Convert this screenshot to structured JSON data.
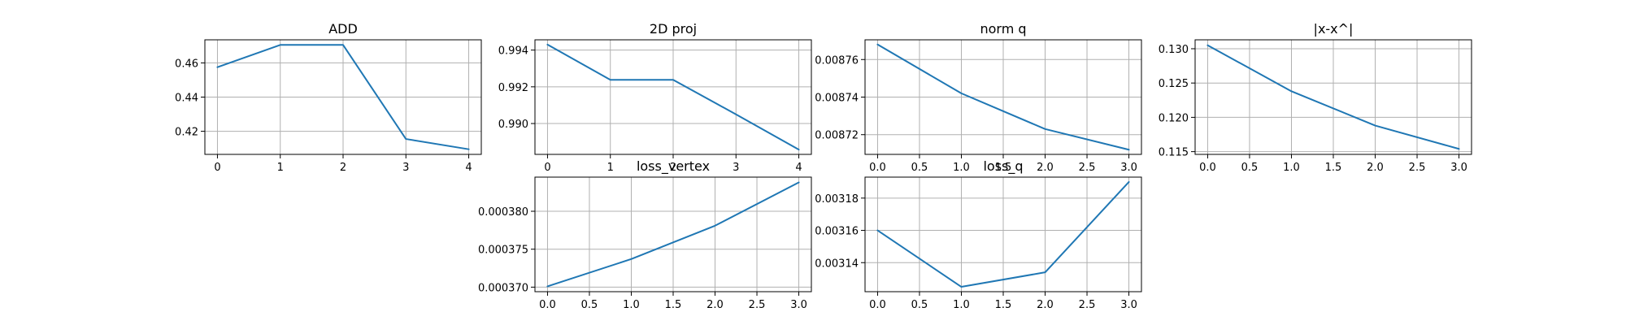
{
  "figure": {
    "background": "#ffffff"
  },
  "chart_data": [
    {
      "type": "line",
      "title": "ADD",
      "x": [
        0,
        1,
        2,
        3,
        4
      ],
      "series": [
        {
          "values": [
            0.4575,
            0.4705,
            0.4705,
            0.4155,
            0.4095
          ],
          "color": "#1f77b4"
        }
      ],
      "xlim": [
        -0.2,
        4.2
      ],
      "ylim": [
        0.4065,
        0.4735
      ],
      "xticks": [
        0,
        1,
        2,
        3,
        4
      ],
      "yticks": [
        0.42,
        0.44,
        0.46
      ],
      "xtick_labels": [
        "0",
        "1",
        "2",
        "3",
        "4"
      ],
      "ytick_labels": [
        "0.42",
        "0.44",
        "0.46"
      ],
      "grid": true
    },
    {
      "type": "line",
      "title": "2D proj",
      "x": [
        0,
        1,
        2,
        3,
        4
      ],
      "series": [
        {
          "values": [
            0.9943,
            0.99238,
            0.99238,
            0.9905,
            0.98858
          ],
          "color": "#1f77b4"
        }
      ],
      "xlim": [
        -0.2,
        4.2
      ],
      "ylim": [
        0.98832,
        0.99456
      ],
      "xticks": [
        0,
        1,
        2,
        3,
        4
      ],
      "yticks": [
        0.99,
        0.992,
        0.994
      ],
      "xtick_labels": [
        "0",
        "1",
        "2",
        "3",
        "4"
      ],
      "ytick_labels": [
        "0.990",
        "0.992",
        "0.994"
      ],
      "grid": true
    },
    {
      "type": "line",
      "title": "norm q",
      "x": [
        0,
        1,
        2,
        3
      ],
      "series": [
        {
          "values": [
            0.008768,
            0.008742,
            0.008723,
            0.008712
          ],
          "color": "#1f77b4"
        }
      ],
      "xlim": [
        -0.15,
        3.15
      ],
      "ylim": [
        0.0087095,
        0.0087705
      ],
      "xticks": [
        0,
        0.5,
        1,
        1.5,
        2,
        2.5,
        3
      ],
      "yticks": [
        0.00872,
        0.00874,
        0.00876
      ],
      "xtick_labels": [
        "0.0",
        "0.5",
        "1.0",
        "1.5",
        "2.0",
        "2.5",
        "3.0"
      ],
      "ytick_labels": [
        "0.00872",
        "0.00874",
        "0.00876"
      ],
      "grid": true
    },
    {
      "type": "line",
      "title": "|x-x^|",
      "x": [
        0,
        1,
        2,
        3
      ],
      "series": [
        {
          "values": [
            0.1305,
            0.1238,
            0.1188,
            0.1154
          ],
          "color": "#1f77b4"
        }
      ],
      "xlim": [
        -0.15,
        3.15
      ],
      "ylim": [
        0.1146,
        0.1313
      ],
      "xticks": [
        0,
        0.5,
        1,
        1.5,
        2,
        2.5,
        3
      ],
      "yticks": [
        0.115,
        0.12,
        0.125,
        0.13
      ],
      "xtick_labels": [
        "0.0",
        "0.5",
        "1.0",
        "1.5",
        "2.0",
        "2.5",
        "3.0"
      ],
      "ytick_labels": [
        "0.115",
        "0.120",
        "0.125",
        "0.130"
      ],
      "grid": true
    },
    {
      "type": "line",
      "title": "loss_vertex",
      "x": [
        0,
        1,
        2,
        3
      ],
      "series": [
        {
          "values": [
            0.0003701,
            0.0003737,
            0.0003781,
            0.0003838
          ],
          "color": "#1f77b4"
        }
      ],
      "xlim": [
        -0.15,
        3.15
      ],
      "ylim": [
        0.0003694,
        0.0003845
      ],
      "xticks": [
        0,
        0.5,
        1,
        1.5,
        2,
        2.5,
        3
      ],
      "yticks": [
        0.00037,
        0.000375,
        0.00038
      ],
      "xtick_labels": [
        "0.0",
        "0.5",
        "1.0",
        "1.5",
        "2.0",
        "2.5",
        "3.0"
      ],
      "ytick_labels": [
        "0.000370",
        "0.000375",
        "0.000380"
      ],
      "grid": true
    },
    {
      "type": "line",
      "title": "loss_q",
      "x": [
        0,
        1,
        2,
        3
      ],
      "series": [
        {
          "values": [
            0.00316,
            0.003125,
            0.003134,
            0.00319
          ],
          "color": "#1f77b4"
        }
      ],
      "xlim": [
        -0.15,
        3.15
      ],
      "ylim": [
        0.003122,
        0.003193
      ],
      "xticks": [
        0,
        0.5,
        1,
        1.5,
        2,
        2.5,
        3
      ],
      "yticks": [
        0.00314,
        0.00316,
        0.00318
      ],
      "xtick_labels": [
        "0.0",
        "0.5",
        "1.0",
        "1.5",
        "2.0",
        "2.5",
        "3.0"
      ],
      "ytick_labels": [
        "0.00314",
        "0.00316",
        "0.00318"
      ],
      "grid": true
    }
  ]
}
